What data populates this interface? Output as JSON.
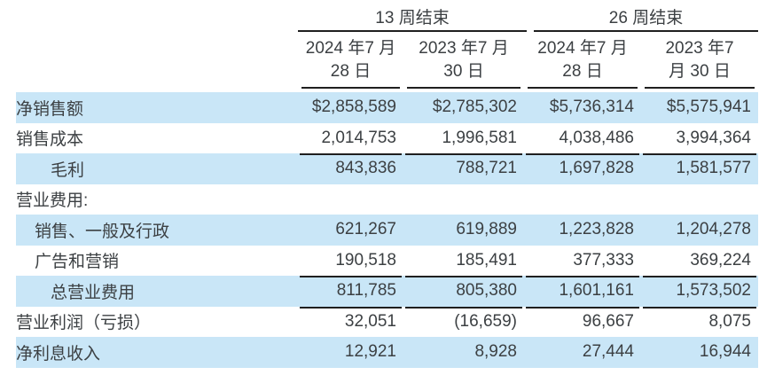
{
  "table": {
    "period_groups": [
      "13 周结束",
      "26 周结束"
    ],
    "date_headers": [
      {
        "line1": "2024 年7 月",
        "line2": "28 日"
      },
      {
        "line1": "2023 年7 月",
        "line2": "30 日"
      },
      {
        "line1": "2024 年7 月",
        "line2": "28 日"
      },
      {
        "line1": "2023 年7",
        "line2": "月 30 日"
      }
    ],
    "rows": [
      {
        "label": "净销售额",
        "indent": 0,
        "highlight": true,
        "top_border": false,
        "values": [
          "$2,858,589",
          "$2,785,302",
          "$5,736,314",
          "$5,575,941"
        ]
      },
      {
        "label": "销售成本",
        "indent": 0,
        "highlight": false,
        "top_border": false,
        "values": [
          "2,014,753",
          "1,996,581",
          "4,038,486",
          "3,994,364"
        ]
      },
      {
        "label": "毛利",
        "indent": 2,
        "highlight": true,
        "top_border": true,
        "values": [
          "843,836",
          "788,721",
          "1,697,828",
          "1,581,577"
        ]
      },
      {
        "label": "营业费用:",
        "indent": 0,
        "highlight": false,
        "top_border": false,
        "values": [
          "",
          "",
          "",
          ""
        ]
      },
      {
        "label": "销售、一般及行政",
        "indent": 1,
        "highlight": true,
        "top_border": false,
        "values": [
          "621,267",
          "619,889",
          "1,223,828",
          "1,204,278"
        ]
      },
      {
        "label": "广告和营销",
        "indent": 1,
        "highlight": false,
        "top_border": false,
        "values": [
          "190,518",
          "185,491",
          "377,333",
          "369,224"
        ]
      },
      {
        "label": "总营业费用",
        "indent": 2,
        "highlight": true,
        "top_border": true,
        "values": [
          "811,785",
          "805,380",
          "1,601,161",
          "1,573,502"
        ]
      },
      {
        "label": "营业利润（亏损）",
        "indent": 0,
        "highlight": false,
        "top_border": true,
        "values": [
          "32,051",
          "(16,659)",
          "96,667",
          "8,075"
        ]
      },
      {
        "label": "净利息收入",
        "indent": 0,
        "highlight": true,
        "top_border": false,
        "values": [
          "12,921",
          "8,928",
          "27,444",
          "16,944"
        ]
      }
    ]
  },
  "colors": {
    "highlight_row": "#c9e6f7",
    "text": "#3c4043",
    "rule": "#1f1f1f"
  }
}
